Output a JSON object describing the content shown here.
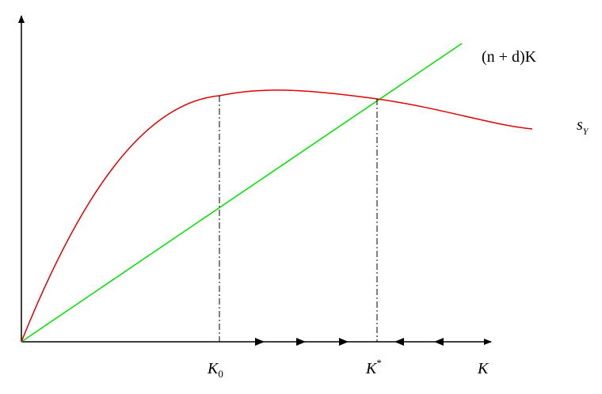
{
  "labels": {
    "line": "(n + d)K",
    "curve": {
      "base": "s",
      "sub": "Y"
    },
    "k0": {
      "base": "K",
      "sub": "0"
    },
    "kstar": {
      "base": "K",
      "sup": "*"
    },
    "axis": "K"
  }
}
